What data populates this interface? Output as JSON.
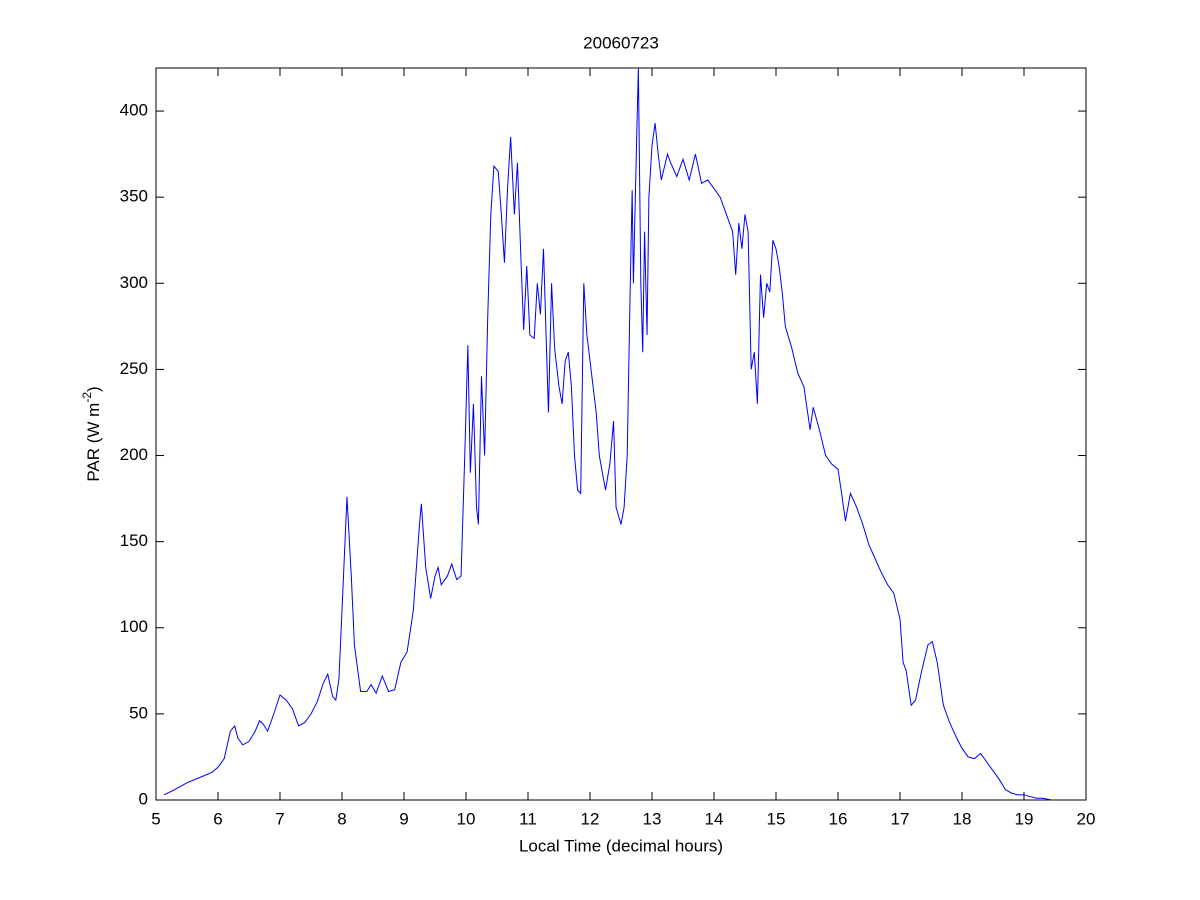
{
  "chart_data": {
    "type": "line",
    "title": "20060723",
    "xlabel": "Local Time (decimal hours)",
    "ylabel": [
      "PAR (W m",
      "-2",
      ")"
    ],
    "color": "#0000ff",
    "xlim": [
      5,
      20
    ],
    "xticks": [
      5,
      6,
      7,
      8,
      9,
      10,
      11,
      12,
      13,
      14,
      15,
      16,
      17,
      18,
      19,
      20
    ],
    "ylim": [
      0,
      425
    ],
    "yticks": [
      0,
      50,
      100,
      150,
      200,
      250,
      300,
      350,
      400
    ],
    "x": [
      5.13,
      5.3,
      5.5,
      5.7,
      5.9,
      6.0,
      6.1,
      6.2,
      6.27,
      6.32,
      6.4,
      6.5,
      6.6,
      6.67,
      6.73,
      6.8,
      6.9,
      7.0,
      7.1,
      7.2,
      7.3,
      7.4,
      7.5,
      7.6,
      7.7,
      7.77,
      7.85,
      7.9,
      7.95,
      8.0,
      8.08,
      8.15,
      8.2,
      8.3,
      8.4,
      8.47,
      8.55,
      8.65,
      8.75,
      8.85,
      8.95,
      9.05,
      9.15,
      9.25,
      9.28,
      9.35,
      9.43,
      9.5,
      9.55,
      9.6,
      9.7,
      9.77,
      9.85,
      9.92,
      9.98,
      10.03,
      10.07,
      10.12,
      10.17,
      10.2,
      10.25,
      10.3,
      10.35,
      10.4,
      10.45,
      10.52,
      10.57,
      10.62,
      10.67,
      10.72,
      10.78,
      10.83,
      10.88,
      10.93,
      10.98,
      11.03,
      11.1,
      11.15,
      11.2,
      11.25,
      11.3,
      11.33,
      11.38,
      11.43,
      11.5,
      11.55,
      11.6,
      11.65,
      11.7,
      11.75,
      11.8,
      11.85,
      11.9,
      11.95,
      12.0,
      12.05,
      12.1,
      12.15,
      12.25,
      12.32,
      12.38,
      12.42,
      12.5,
      12.55,
      12.6,
      12.65,
      12.68,
      12.7,
      12.75,
      12.78,
      12.82,
      12.85,
      12.88,
      12.92,
      12.95,
      13.0,
      13.05,
      13.1,
      13.15,
      13.25,
      13.3,
      13.4,
      13.5,
      13.6,
      13.7,
      13.8,
      13.9,
      14.0,
      14.1,
      14.2,
      14.3,
      14.35,
      14.4,
      14.45,
      14.5,
      14.55,
      14.6,
      14.65,
      14.7,
      14.75,
      14.8,
      14.85,
      14.9,
      14.95,
      15.0,
      15.05,
      15.1,
      15.15,
      15.25,
      15.35,
      15.45,
      15.55,
      15.6,
      15.7,
      15.8,
      15.9,
      16.0,
      16.05,
      16.12,
      16.2,
      16.3,
      16.4,
      16.5,
      16.6,
      16.7,
      16.8,
      16.9,
      17.0,
      17.05,
      17.1,
      17.18,
      17.25,
      17.35,
      17.45,
      17.52,
      17.6,
      17.7,
      17.8,
      17.9,
      18.0,
      18.1,
      18.2,
      18.3,
      18.4,
      18.5,
      18.6,
      18.7,
      18.8,
      18.9,
      19.0,
      19.1,
      19.2,
      19.3,
      19.45
    ],
    "values": [
      3,
      6,
      10,
      13,
      16,
      19,
      24,
      40,
      43,
      36,
      32,
      34,
      40,
      46,
      44,
      40,
      50,
      61,
      58,
      53,
      43,
      45,
      50,
      57,
      68,
      73,
      60,
      58,
      70,
      110,
      176,
      130,
      90,
      63,
      63,
      67,
      62,
      72,
      63,
      64,
      80,
      86,
      110,
      160,
      172,
      135,
      117,
      130,
      135,
      125,
      130,
      137,
      128,
      130,
      200,
      264,
      190,
      230,
      170,
      160,
      246,
      200,
      280,
      340,
      368,
      365,
      340,
      312,
      355,
      385,
      340,
      370,
      320,
      273,
      310,
      270,
      268,
      300,
      282,
      320,
      260,
      225,
      300,
      262,
      240,
      230,
      255,
      260,
      240,
      200,
      180,
      178,
      300,
      270,
      255,
      240,
      225,
      200,
      180,
      195,
      220,
      170,
      160,
      170,
      200,
      300,
      354,
      300,
      380,
      425,
      300,
      260,
      330,
      270,
      350,
      380,
      393,
      375,
      360,
      375,
      370,
      362,
      372,
      360,
      375,
      358,
      360,
      355,
      350,
      340,
      330,
      305,
      335,
      320,
      340,
      330,
      250,
      260,
      230,
      305,
      280,
      300,
      295,
      325,
      320,
      310,
      295,
      275,
      263,
      248,
      240,
      215,
      228,
      215,
      200,
      195,
      192,
      180,
      162,
      178,
      170,
      160,
      148,
      140,
      132,
      125,
      120,
      105,
      80,
      75,
      55,
      58,
      75,
      90,
      92,
      80,
      55,
      45,
      37,
      30,
      25,
      24,
      27,
      22,
      17,
      12,
      6,
      4,
      3,
      3,
      2,
      1,
      1,
      0
    ]
  }
}
